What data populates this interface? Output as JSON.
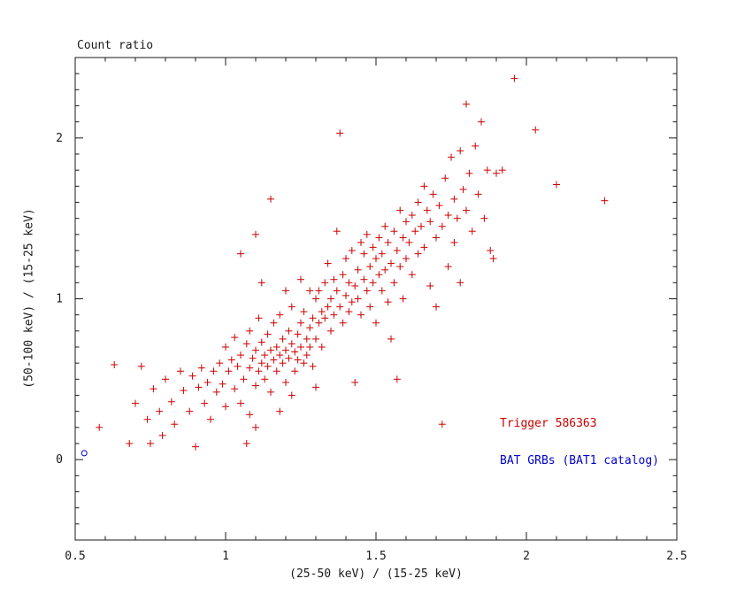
{
  "chart_data": {
    "type": "scatter",
    "title": "Count ratio",
    "xlabel": "(25-50 keV) / (15-25 keV)",
    "ylabel": "(50-100 keV) / (15-25 keV)",
    "xlim": [
      0.5,
      2.5
    ],
    "ylim": [
      -0.5,
      2.5
    ],
    "xticks": [
      0.5,
      1.0,
      1.5,
      2.0,
      2.5
    ],
    "xtick_labels": [
      "0.5",
      "1",
      "1.5",
      "2",
      "2.5"
    ],
    "yticks": [
      0,
      1,
      2
    ],
    "ytick_labels": [
      "0",
      "1",
      "2"
    ],
    "minor_tick_step": 0.1,
    "grid": false,
    "axis_color": "#1a1a1a",
    "legend": {
      "position": "lower-right",
      "entries": [
        {
          "label": "Trigger 586363",
          "color": "#cc0000"
        },
        {
          "label": "BAT GRBs (BAT1 catalog)",
          "color": "#0000cc"
        }
      ]
    },
    "series": [
      {
        "name": "Trigger 586363",
        "marker": "plus",
        "color": "#cc0000",
        "points": [
          [
            0.58,
            0.2
          ],
          [
            0.63,
            0.59
          ],
          [
            0.68,
            0.1
          ],
          [
            0.7,
            0.35
          ],
          [
            0.72,
            0.58
          ],
          [
            0.74,
            0.25
          ],
          [
            0.75,
            0.1
          ],
          [
            0.76,
            0.44
          ],
          [
            0.78,
            0.3
          ],
          [
            0.79,
            0.15
          ],
          [
            0.8,
            0.5
          ],
          [
            0.82,
            0.36
          ],
          [
            0.83,
            0.22
          ],
          [
            0.85,
            0.55
          ],
          [
            0.86,
            0.43
          ],
          [
            0.88,
            0.3
          ],
          [
            0.89,
            0.52
          ],
          [
            0.9,
            0.08
          ],
          [
            0.91,
            0.45
          ],
          [
            0.92,
            0.57
          ],
          [
            0.93,
            0.35
          ],
          [
            0.94,
            0.48
          ],
          [
            0.95,
            0.25
          ],
          [
            0.96,
            0.55
          ],
          [
            0.97,
            0.42
          ],
          [
            0.98,
            0.6
          ],
          [
            0.99,
            0.47
          ],
          [
            1.0,
            0.7
          ],
          [
            1.0,
            0.33
          ],
          [
            1.01,
            0.55
          ],
          [
            1.02,
            0.62
          ],
          [
            1.03,
            0.44
          ],
          [
            1.03,
            0.76
          ],
          [
            1.04,
            0.58
          ],
          [
            1.05,
            0.35
          ],
          [
            1.05,
            0.65
          ],
          [
            1.06,
            0.5
          ],
          [
            1.07,
            0.72
          ],
          [
            1.07,
            0.1
          ],
          [
            1.08,
            0.57
          ],
          [
            1.08,
            0.8
          ],
          [
            1.09,
            0.63
          ],
          [
            1.1,
            0.46
          ],
          [
            1.1,
            0.68
          ],
          [
            1.1,
            1.4
          ],
          [
            1.11,
            0.55
          ],
          [
            1.11,
            0.88
          ],
          [
            1.12,
            0.6
          ],
          [
            1.12,
            0.73
          ],
          [
            1.13,
            0.5
          ],
          [
            1.13,
            0.65
          ],
          [
            1.14,
            0.78
          ],
          [
            1.14,
            0.58
          ],
          [
            1.15,
            0.68
          ],
          [
            1.15,
            0.42
          ],
          [
            1.16,
            0.62
          ],
          [
            1.16,
            0.85
          ],
          [
            1.17,
            0.7
          ],
          [
            1.17,
            0.55
          ],
          [
            1.18,
            0.65
          ],
          [
            1.18,
            0.9
          ],
          [
            1.19,
            0.6
          ],
          [
            1.19,
            0.75
          ],
          [
            1.2,
            0.68
          ],
          [
            1.2,
            0.48
          ],
          [
            1.21,
            0.8
          ],
          [
            1.21,
            0.63
          ],
          [
            1.22,
            0.72
          ],
          [
            1.22,
            0.95
          ],
          [
            1.23,
            0.67
          ],
          [
            1.23,
            0.55
          ],
          [
            1.24,
            0.78
          ],
          [
            1.24,
            0.62
          ],
          [
            1.25,
            0.85
          ],
          [
            1.25,
            0.7
          ],
          [
            1.26,
            0.6
          ],
          [
            1.26,
            0.92
          ],
          [
            1.27,
            0.75
          ],
          [
            1.27,
            0.65
          ],
          [
            1.28,
            0.82
          ],
          [
            1.28,
            0.7
          ],
          [
            1.29,
            0.58
          ],
          [
            1.29,
            0.88
          ],
          [
            1.3,
            0.75
          ],
          [
            1.3,
            1.0
          ],
          [
            1.05,
            1.28
          ],
          [
            1.08,
            0.28
          ],
          [
            1.1,
            0.2
          ],
          [
            1.12,
            1.1
          ],
          [
            1.15,
            1.62
          ],
          [
            1.18,
            0.3
          ],
          [
            1.2,
            1.05
          ],
          [
            1.22,
            0.4
          ],
          [
            1.25,
            1.12
          ],
          [
            1.28,
            1.05
          ],
          [
            1.3,
            0.45
          ],
          [
            1.31,
            0.85
          ],
          [
            1.31,
            1.05
          ],
          [
            1.32,
            0.92
          ],
          [
            1.32,
            0.7
          ],
          [
            1.33,
            1.1
          ],
          [
            1.33,
            0.88
          ],
          [
            1.34,
            0.95
          ],
          [
            1.34,
            1.22
          ],
          [
            1.35,
            0.8
          ],
          [
            1.35,
            1.0
          ],
          [
            1.36,
            1.12
          ],
          [
            1.36,
            0.9
          ],
          [
            1.37,
            1.05
          ],
          [
            1.37,
            1.42
          ],
          [
            1.38,
            2.03
          ],
          [
            1.38,
            0.95
          ],
          [
            1.39,
            1.15
          ],
          [
            1.39,
            0.85
          ],
          [
            1.4,
            1.02
          ],
          [
            1.4,
            1.25
          ],
          [
            1.41,
            0.92
          ],
          [
            1.41,
            1.1
          ],
          [
            1.42,
            1.3
          ],
          [
            1.42,
            0.98
          ],
          [
            1.43,
            1.08
          ],
          [
            1.43,
            0.48
          ],
          [
            1.44,
            1.18
          ],
          [
            1.44,
            1.0
          ],
          [
            1.45,
            1.35
          ],
          [
            1.45,
            0.9
          ],
          [
            1.46,
            1.12
          ],
          [
            1.46,
            1.28
          ],
          [
            1.47,
            1.05
          ],
          [
            1.47,
            1.4
          ],
          [
            1.48,
            1.2
          ],
          [
            1.48,
            0.95
          ],
          [
            1.49,
            1.32
          ],
          [
            1.49,
            1.1
          ],
          [
            1.5,
            1.25
          ],
          [
            1.5,
            0.85
          ],
          [
            1.51,
            1.15
          ],
          [
            1.51,
            1.38
          ],
          [
            1.52,
            1.05
          ],
          [
            1.52,
            1.28
          ],
          [
            1.53,
            1.45
          ],
          [
            1.53,
            1.18
          ],
          [
            1.54,
            0.98
          ],
          [
            1.54,
            1.35
          ],
          [
            1.55,
            1.22
          ],
          [
            1.55,
            0.75
          ],
          [
            1.56,
            1.42
          ],
          [
            1.56,
            1.1
          ],
          [
            1.57,
            1.3
          ],
          [
            1.57,
            0.5
          ],
          [
            1.58,
            1.55
          ],
          [
            1.58,
            1.2
          ],
          [
            1.59,
            1.38
          ],
          [
            1.59,
            1.0
          ],
          [
            1.6,
            1.48
          ],
          [
            1.6,
            1.25
          ],
          [
            1.61,
            1.35
          ],
          [
            1.62,
            1.52
          ],
          [
            1.62,
            1.15
          ],
          [
            1.63,
            1.42
          ],
          [
            1.64,
            1.6
          ],
          [
            1.64,
            1.28
          ],
          [
            1.65,
            1.45
          ],
          [
            1.66,
            1.7
          ],
          [
            1.66,
            1.32
          ],
          [
            1.67,
            1.55
          ],
          [
            1.68,
            1.08
          ],
          [
            1.68,
            1.48
          ],
          [
            1.69,
            1.65
          ],
          [
            1.7,
            1.38
          ],
          [
            1.7,
            0.95
          ],
          [
            1.71,
            1.58
          ],
          [
            1.72,
            0.22
          ],
          [
            1.72,
            1.45
          ],
          [
            1.73,
            1.75
          ],
          [
            1.74,
            1.52
          ],
          [
            1.74,
            1.2
          ],
          [
            1.75,
            1.88
          ],
          [
            1.76,
            1.62
          ],
          [
            1.76,
            1.35
          ],
          [
            1.77,
            1.5
          ],
          [
            1.78,
            1.92
          ],
          [
            1.78,
            1.1
          ],
          [
            1.79,
            1.68
          ],
          [
            1.8,
            1.55
          ],
          [
            1.8,
            2.21
          ],
          [
            1.81,
            1.78
          ],
          [
            1.82,
            1.42
          ],
          [
            1.83,
            1.95
          ],
          [
            1.84,
            1.65
          ],
          [
            1.85,
            2.1
          ],
          [
            1.86,
            1.5
          ],
          [
            1.87,
            1.8
          ],
          [
            1.88,
            1.3
          ],
          [
            1.89,
            1.25
          ],
          [
            1.9,
            1.78
          ],
          [
            1.92,
            1.8
          ],
          [
            1.96,
            2.37
          ],
          [
            2.03,
            2.05
          ],
          [
            2.1,
            1.71
          ],
          [
            2.26,
            1.61
          ]
        ]
      },
      {
        "name": "BAT GRBs (BAT1 catalog)",
        "marker": "open-circle",
        "color": "#0000cc",
        "points": [
          [
            0.53,
            0.04
          ]
        ]
      }
    ]
  }
}
